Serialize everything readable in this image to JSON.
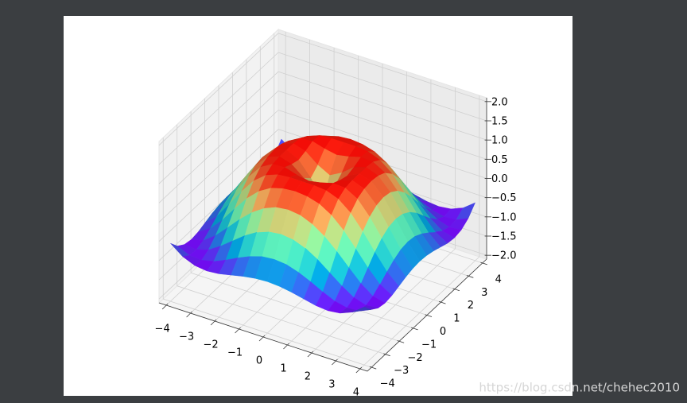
{
  "chart_data": {
    "type": "surface3d",
    "colormap": "rainbow",
    "grid": true,
    "x": [
      -4,
      -3.5,
      -3,
      -2.5,
      -2,
      -1.5,
      -1,
      -0.5,
      0,
      0.5,
      1,
      1.5,
      2,
      2.5,
      3,
      3.5,
      4
    ],
    "y": [
      -4,
      -3.5,
      -3,
      -2.5,
      -2,
      -1.5,
      -1,
      -0.5,
      0,
      0.5,
      1,
      1.5,
      2,
      2.5,
      3,
      3.5,
      4
    ],
    "z": [
      [
        -0.59,
        -0.83,
        -0.96,
        -1,
        -0.97,
        -0.9,
        -0.83,
        -0.78,
        -0.76,
        -0.78,
        -0.83,
        -0.9,
        -0.97,
        -1,
        -0.96,
        -0.83,
        -0.59
      ],
      [
        -0.83,
        -0.97,
        -0.99,
        -0.92,
        -0.78,
        -0.62,
        -0.48,
        -0.38,
        -0.35,
        -0.38,
        -0.48,
        -0.62,
        -0.78,
        -0.92,
        -0.99,
        -0.97,
        -0.83
      ],
      [
        -0.96,
        -0.99,
        -0.89,
        -0.69,
        -0.45,
        -0.21,
        -0.02,
        0.1,
        0.14,
        0.1,
        -0.02,
        -0.21,
        -0.45,
        -0.69,
        -0.89,
        -0.99,
        -0.96
      ],
      [
        -1,
        -0.92,
        -0.69,
        -0.38,
        -0.06,
        0.22,
        0.43,
        0.56,
        0.6,
        0.56,
        0.43,
        0.22,
        -0.06,
        -0.38,
        -0.69,
        -0.92,
        -1
      ],
      [
        -0.97,
        -0.78,
        -0.45,
        -0.06,
        0.31,
        0.6,
        0.79,
        0.88,
        0.91,
        0.88,
        0.79,
        0.6,
        0.31,
        -0.06,
        -0.45,
        -0.78,
        -0.97
      ],
      [
        -0.9,
        -0.62,
        -0.21,
        0.22,
        0.6,
        0.85,
        0.97,
        1,
        1,
        1,
        0.97,
        0.85,
        0.6,
        0.22,
        -0.21,
        -0.62,
        -0.9
      ],
      [
        -0.83,
        -0.48,
        -0.02,
        0.43,
        0.79,
        0.97,
        0.99,
        0.9,
        0.84,
        0.9,
        0.99,
        0.97,
        0.79,
        0.43,
        -0.02,
        -0.48,
        -0.83
      ],
      [
        -0.78,
        -0.38,
        0.1,
        0.56,
        0.88,
        1,
        0.9,
        0.65,
        0.48,
        0.65,
        0.9,
        1,
        0.88,
        0.56,
        0.1,
        -0.38,
        -0.78
      ],
      [
        -0.76,
        -0.35,
        0.14,
        0.6,
        0.91,
        1,
        0.84,
        0.48,
        0,
        0.48,
        0.84,
        1,
        0.91,
        0.6,
        0.14,
        -0.35,
        -0.76
      ],
      [
        -0.78,
        -0.38,
        0.1,
        0.56,
        0.88,
        1,
        0.9,
        0.65,
        0.48,
        0.65,
        0.9,
        1,
        0.88,
        0.56,
        0.1,
        -0.38,
        -0.78
      ],
      [
        -0.83,
        -0.48,
        -0.02,
        0.43,
        0.79,
        0.97,
        0.99,
        0.9,
        0.84,
        0.9,
        0.99,
        0.97,
        0.79,
        0.43,
        -0.02,
        -0.48,
        -0.83
      ],
      [
        -0.9,
        -0.62,
        -0.21,
        0.22,
        0.6,
        0.85,
        0.97,
        1,
        1,
        1,
        0.97,
        0.85,
        0.6,
        0.22,
        -0.21,
        -0.62,
        -0.9
      ],
      [
        -0.97,
        -0.78,
        -0.45,
        -0.06,
        0.31,
        0.6,
        0.79,
        0.88,
        0.91,
        0.88,
        0.79,
        0.6,
        0.31,
        -0.06,
        -0.45,
        -0.78,
        -0.97
      ],
      [
        -1,
        -0.92,
        -0.69,
        -0.38,
        -0.06,
        0.22,
        0.43,
        0.56,
        0.6,
        0.56,
        0.43,
        0.22,
        -0.06,
        -0.38,
        -0.69,
        -0.92,
        -1
      ],
      [
        -0.96,
        -0.99,
        -0.89,
        -0.69,
        -0.45,
        -0.21,
        -0.02,
        0.1,
        0.14,
        0.1,
        -0.02,
        -0.21,
        -0.45,
        -0.69,
        -0.89,
        -0.99,
        -0.96
      ],
      [
        -0.83,
        -0.97,
        -0.99,
        -0.92,
        -0.78,
        -0.62,
        -0.48,
        -0.38,
        -0.35,
        -0.38,
        -0.48,
        -0.62,
        -0.78,
        -0.92,
        -0.99,
        -0.97,
        -0.83
      ],
      [
        -0.59,
        -0.83,
        -0.96,
        -1,
        -0.97,
        -0.9,
        -0.83,
        -0.78,
        -0.76,
        -0.78,
        -0.83,
        -0.9,
        -0.97,
        -1,
        -0.96,
        -0.83,
        -0.59
      ]
    ],
    "xlim": [
      -4.3,
      4.3
    ],
    "ylim": [
      -4.3,
      4.3
    ],
    "zlim": [
      -2.1,
      2.1
    ],
    "xticks": [
      {
        "value": -4,
        "label": "−4"
      },
      {
        "value": -3,
        "label": "−3"
      },
      {
        "value": -2,
        "label": "−2"
      },
      {
        "value": -1,
        "label": "−1"
      },
      0,
      1,
      2,
      3,
      4
    ],
    "yticks": [
      {
        "value": -4,
        "label": "−4"
      },
      {
        "value": -3,
        "label": "−3"
      },
      {
        "value": -2,
        "label": "−2"
      },
      {
        "value": -1,
        "label": "−1"
      },
      0,
      1,
      2,
      3,
      4
    ],
    "zticks": [
      {
        "value": -2,
        "label": "−2.0"
      },
      {
        "value": -1.5,
        "label": "−1.5"
      },
      {
        "value": -1,
        "label": "−1.0"
      },
      {
        "value": -0.5,
        "label": "−0.5"
      },
      {
        "value": 0,
        "label": "0.0"
      },
      {
        "value": 0.5,
        "label": "0.5"
      },
      {
        "value": 1,
        "label": "1.0"
      },
      {
        "value": 1.5,
        "label": "1.5"
      },
      {
        "value": 2,
        "label": "2.0"
      }
    ]
  },
  "watermark": "https://blog.csdn.net/chehec2010"
}
